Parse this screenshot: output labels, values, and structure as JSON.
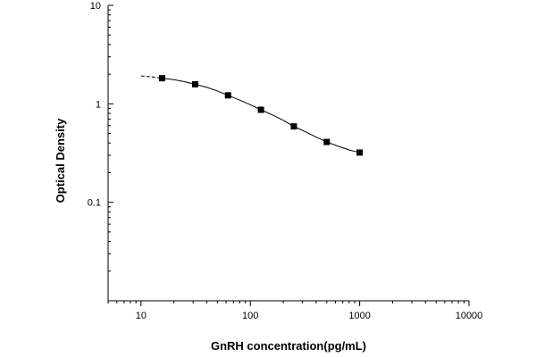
{
  "chart_data": {
    "type": "scatter",
    "xlabel": "GnRH concentration(pg/mL)",
    "ylabel": "Optical Density",
    "x_scale": "log",
    "y_scale": "log",
    "xlim": [
      5,
      10000
    ],
    "ylim": [
      0.01,
      10
    ],
    "x_ticks": [
      10,
      100,
      1000,
      10000
    ],
    "x_tick_labels": [
      "10",
      "100",
      "1000",
      "10000"
    ],
    "y_ticks": [
      0.1,
      1,
      10
    ],
    "y_tick_labels": [
      "0.1",
      "1",
      "10"
    ],
    "grid": false,
    "series": [
      {
        "marker": "square",
        "color": "#000000",
        "x": [
          15.6,
          31.25,
          62.5,
          125,
          250,
          500,
          1000
        ],
        "y": [
          1.82,
          1.58,
          1.22,
          0.87,
          0.59,
          0.41,
          0.32
        ]
      }
    ],
    "fit_curve": {
      "color": "#000000",
      "style": "solid",
      "extrapolated_style": "dashed",
      "x": [
        10,
        12.5,
        15.6,
        20,
        25,
        31.25,
        40,
        50,
        62.5,
        80,
        100,
        125,
        160,
        200,
        250,
        320,
        400,
        500,
        640,
        800,
        1000
      ],
      "y": [
        1.92,
        1.88,
        1.82,
        1.76,
        1.68,
        1.58,
        1.47,
        1.35,
        1.22,
        1.09,
        0.98,
        0.87,
        0.77,
        0.68,
        0.59,
        0.52,
        0.46,
        0.41,
        0.37,
        0.34,
        0.32
      ]
    }
  }
}
